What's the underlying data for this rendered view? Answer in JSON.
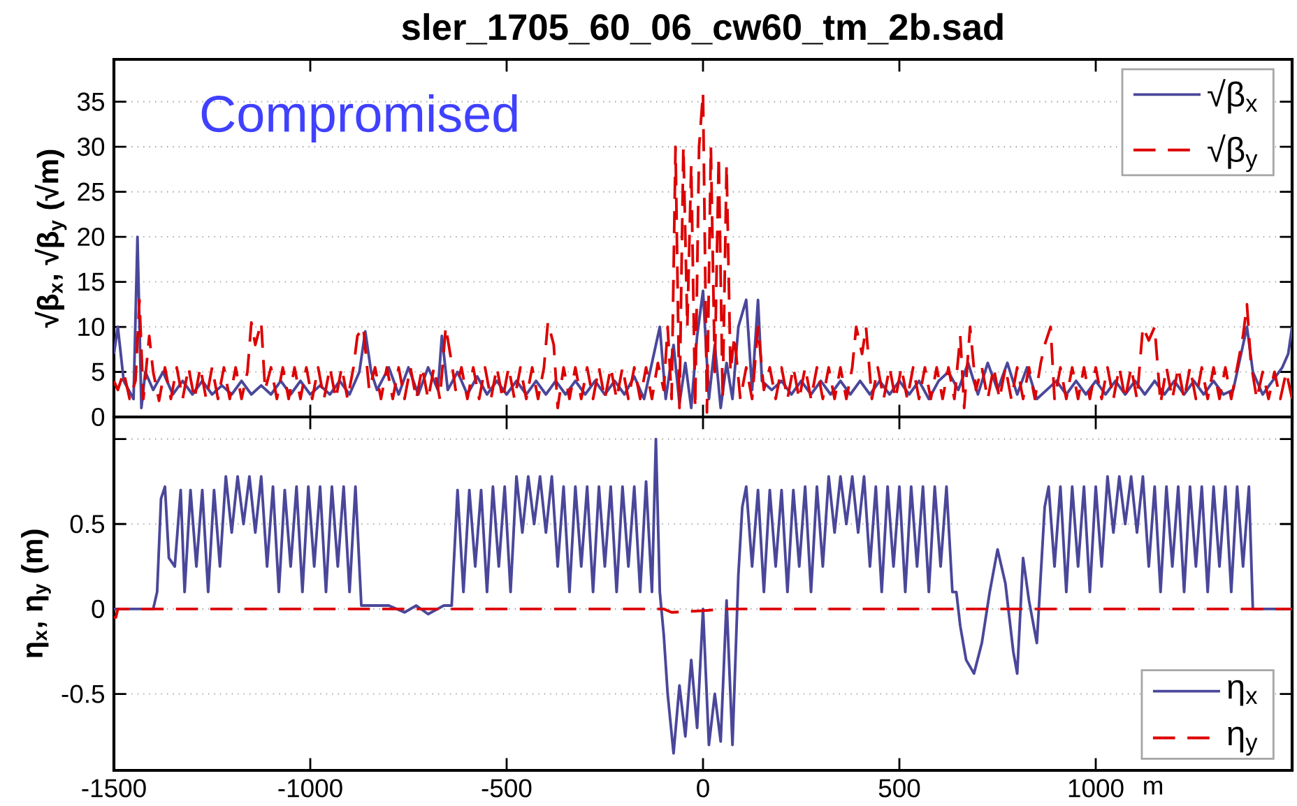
{
  "chart_data": [
    {
      "type": "line",
      "title": "sler_1705_60_06_cw60_tm_2b.sad",
      "ylabel": "√β$_{x}$, √β$_{y}$ (√m)",
      "annotations": [
        "Compromised"
      ],
      "xlim": [
        -1500,
        1500
      ],
      "xticks": [
        -1500,
        -1000,
        -500,
        0,
        500,
        1000
      ],
      "ylim": [
        0,
        39.7
      ],
      "yticks": [
        0,
        5,
        10,
        15,
        20,
        25,
        30,
        35
      ],
      "grid": "y",
      "legend": "top right",
      "tick_labels": "y",
      "series": [
        {
          "name": "√β$_{x}$",
          "color": "#4a479a",
          "line_style": "solid",
          "x": [
            -1500,
            -1490,
            -1475,
            -1450,
            -1440,
            -1430,
            -1420,
            -1400,
            -1375,
            -1350,
            -1325,
            -1300,
            -1275,
            -1250,
            -1225,
            -1200,
            -1175,
            -1150,
            -1125,
            -1100,
            -1075,
            -1050,
            -1025,
            -1000,
            -975,
            -950,
            -925,
            -900,
            -875,
            -860,
            -845,
            -830,
            -800,
            -775,
            -750,
            -725,
            -700,
            -675,
            -665,
            -650,
            -625,
            -600,
            -575,
            -550,
            -525,
            -500,
            -475,
            -450,
            -425,
            -400,
            -375,
            -350,
            -325,
            -300,
            -275,
            -250,
            -225,
            -200,
            -175,
            -150,
            -125,
            -110,
            -95,
            -75,
            -60,
            -45,
            -30,
            -15,
            0,
            15,
            30,
            45,
            60,
            75,
            90,
            110,
            125,
            140,
            150,
            175,
            200,
            225,
            250,
            275,
            300,
            325,
            350,
            375,
            400,
            425,
            450,
            475,
            500,
            525,
            550,
            575,
            600,
            625,
            650,
            675,
            700,
            725,
            750,
            775,
            800,
            825,
            850,
            875,
            900,
            925,
            950,
            975,
            1000,
            1025,
            1050,
            1075,
            1100,
            1125,
            1150,
            1175,
            1200,
            1225,
            1250,
            1275,
            1300,
            1325,
            1350,
            1375,
            1385,
            1400,
            1425,
            1450,
            1475,
            1490,
            1500
          ],
          "values": [
            7,
            10,
            4,
            2,
            20,
            1,
            5,
            3,
            5,
            2.5,
            4,
            2.5,
            4,
            2.5,
            3.5,
            2.5,
            4,
            2.5,
            3.5,
            2.5,
            4,
            2.5,
            4,
            2.5,
            3.5,
            2.5,
            4,
            2.5,
            5,
            9.5,
            5,
            3,
            5.5,
            2.5,
            5.5,
            2.5,
            5.5,
            3,
            9,
            3,
            5,
            2.5,
            4.5,
            2.5,
            4,
            2.5,
            4,
            2.5,
            4,
            2.5,
            4,
            2.5,
            4,
            2.5,
            4,
            2.5,
            4,
            2.5,
            4.5,
            2,
            7,
            10,
            2,
            8,
            1.5,
            6,
            1,
            9,
            14,
            2,
            8,
            1,
            6,
            2,
            10,
            13,
            3,
            13,
            4,
            3,
            4,
            2.5,
            4,
            2.5,
            4,
            2.5,
            4,
            2.5,
            4,
            2.5,
            4,
            2.5,
            4,
            2.5,
            4,
            2,
            4,
            5,
            3,
            6,
            2.5,
            6,
            3,
            6,
            2.5,
            5.5,
            2,
            3,
            4,
            2.5,
            4,
            2.5,
            4,
            2.5,
            4,
            2.5,
            4,
            2.5,
            4,
            2.5,
            4,
            2.5,
            4,
            2.5,
            4,
            2.5,
            3,
            8,
            10,
            5,
            2.5,
            4,
            5.5,
            7,
            10
          ]
        },
        {
          "name": "√β$_{y}$",
          "color": "#dd0000",
          "line_style": "dashed",
          "x": [
            -1500,
            -1490,
            -1475,
            -1460,
            -1445,
            -1435,
            -1425,
            -1410,
            -1400,
            -1385,
            -1370,
            -1355,
            -1340,
            -1325,
            -1310,
            -1295,
            -1280,
            -1265,
            -1250,
            -1235,
            -1220,
            -1205,
            -1190,
            -1175,
            -1160,
            -1150,
            -1140,
            -1125,
            -1115,
            -1100,
            -1085,
            -1070,
            -1055,
            -1040,
            -1025,
            -1010,
            -995,
            -980,
            -965,
            -950,
            -935,
            -920,
            -905,
            -890,
            -880,
            -865,
            -850,
            -835,
            -820,
            -805,
            -790,
            -775,
            -760,
            -745,
            -730,
            -715,
            -700,
            -685,
            -670,
            -655,
            -640,
            -630,
            -615,
            -600,
            -585,
            -570,
            -555,
            -540,
            -525,
            -510,
            -495,
            -480,
            -465,
            -450,
            -435,
            -420,
            -405,
            -395,
            -380,
            -370,
            -355,
            -340,
            -325,
            -310,
            -295,
            -280,
            -265,
            -250,
            -235,
            -220,
            -205,
            -190,
            -175,
            -160,
            -145,
            -130,
            -115,
            -100,
            -90,
            -80,
            -70,
            -60,
            -50,
            -40,
            -30,
            -20,
            -10,
            0,
            10,
            20,
            30,
            40,
            50,
            60,
            70,
            80,
            95,
            110,
            125,
            140,
            155,
            170,
            185,
            200,
            215,
            230,
            245,
            260,
            275,
            290,
            305,
            320,
            335,
            350,
            365,
            380,
            390,
            405,
            415,
            430,
            445,
            460,
            475,
            490,
            505,
            520,
            535,
            550,
            565,
            580,
            595,
            610,
            625,
            640,
            655,
            665,
            680,
            695,
            710,
            725,
            740,
            755,
            770,
            785,
            800,
            815,
            830,
            845,
            860,
            870,
            885,
            895,
            910,
            925,
            940,
            955,
            970,
            985,
            1000,
            1015,
            1030,
            1045,
            1060,
            1075,
            1090,
            1105,
            1120,
            1135,
            1150,
            1165,
            1180,
            1195,
            1210,
            1225,
            1240,
            1255,
            1270,
            1285,
            1300,
            1315,
            1330,
            1345,
            1360,
            1375,
            1385,
            1395,
            1410,
            1425,
            1440,
            1455,
            1470,
            1485,
            1500
          ],
          "values": [
            4,
            3,
            5,
            2,
            4,
            13,
            2,
            9,
            5,
            1.8,
            5.5,
            2,
            5.5,
            2,
            5.5,
            2,
            5.5,
            2,
            5.5,
            2,
            5.5,
            2,
            5.5,
            2,
            5,
            10.5,
            8,
            10.5,
            3,
            5.5,
            2,
            5.5,
            2,
            5.5,
            2,
            5.5,
            2,
            5.5,
            2,
            5.5,
            2,
            5.5,
            2,
            5.5,
            9,
            10,
            3,
            5.5,
            2,
            5.5,
            2,
            5.5,
            2,
            5.5,
            2,
            5.5,
            2,
            5.5,
            2,
            10,
            6,
            3,
            5.5,
            2,
            5.5,
            2,
            5.5,
            2,
            5.5,
            2,
            5.5,
            2,
            5.5,
            2,
            5.5,
            2,
            5.5,
            10.5,
            8,
            1,
            5.5,
            2,
            5.5,
            2,
            5.5,
            2,
            5.5,
            2,
            5.5,
            2,
            5.5,
            2,
            5.5,
            2,
            5.5,
            2,
            6,
            3,
            10,
            2,
            30,
            1,
            30,
            10,
            28,
            1,
            30,
            36,
            0.5,
            30,
            5,
            29,
            2,
            28,
            5,
            9,
            2,
            5.5,
            2,
            10,
            3,
            5.5,
            2,
            5.5,
            2,
            5.5,
            2,
            5.5,
            2,
            5.5,
            2,
            5.5,
            2,
            5.5,
            2,
            5.5,
            10,
            7,
            10,
            2,
            5.5,
            2,
            5.5,
            2,
            5.5,
            2,
            5.5,
            2,
            5.5,
            2,
            5.5,
            2,
            5.5,
            2,
            9,
            1,
            10,
            3,
            5.5,
            2,
            5.5,
            2,
            5.5,
            2,
            5.5,
            2,
            5.5,
            2,
            6,
            8,
            10,
            2,
            5.5,
            2,
            5.5,
            2,
            5.5,
            2,
            5.5,
            2,
            5.5,
            2,
            5.5,
            2,
            5.5,
            2,
            10,
            8.5,
            10,
            1.5,
            5.5,
            2,
            5.5,
            2,
            5.5,
            2,
            5.5,
            2,
            5.5,
            2,
            5.5,
            2,
            5.5,
            9,
            12.5,
            6,
            2,
            5,
            2,
            5,
            2,
            5,
            2
          ]
        }
      ]
    },
    {
      "type": "line",
      "xlabel": "m",
      "ylabel": "η$_{x}$, η$_{y}$ (m)",
      "xlim": [
        -1500,
        1500
      ],
      "xticks": [
        -1500,
        -1000,
        -500,
        0,
        500,
        1000
      ],
      "ylim": [
        -0.95,
        1.13
      ],
      "yticks": [
        -0.5,
        0,
        0.5,
        {
          "value": 1,
          "label": null
        }
      ],
      "grid": "y",
      "legend": "bottom right",
      "series": [
        {
          "name": "η$_{x}$",
          "color": "#4a479a",
          "line_style": "solid",
          "x": [
            -1500,
            -1400,
            -1390,
            -1380,
            -1370,
            -1360,
            -1345,
            -1330,
            -1320,
            -1305,
            -1290,
            -1275,
            -1260,
            -1245,
            -1230,
            -1215,
            -1200,
            -1185,
            -1170,
            -1155,
            -1140,
            -1125,
            -1110,
            -1095,
            -1080,
            -1065,
            -1050,
            -1035,
            -1020,
            -1005,
            -990,
            -975,
            -960,
            -945,
            -930,
            -915,
            -900,
            -885,
            -870,
            -800,
            -760,
            -730,
            -700,
            -660,
            -640,
            -625,
            -610,
            -595,
            -580,
            -565,
            -550,
            -535,
            -520,
            -505,
            -490,
            -475,
            -460,
            -445,
            -430,
            -415,
            -400,
            -385,
            -370,
            -355,
            -340,
            -325,
            -310,
            -295,
            -280,
            -265,
            -250,
            -235,
            -220,
            -205,
            -190,
            -175,
            -160,
            -145,
            -130,
            -120,
            -110,
            -100,
            -90,
            -75,
            -60,
            -45,
            -30,
            -15,
            0,
            15,
            30,
            45,
            60,
            75,
            90,
            100,
            110,
            125,
            140,
            155,
            170,
            185,
            200,
            215,
            230,
            245,
            260,
            275,
            290,
            305,
            320,
            335,
            350,
            365,
            380,
            395,
            410,
            425,
            440,
            455,
            470,
            485,
            500,
            515,
            530,
            545,
            560,
            575,
            590,
            605,
            620,
            635,
            645,
            655,
            670,
            690,
            710,
            730,
            750,
            770,
            790,
            800,
            815,
            830,
            850,
            870,
            880,
            895,
            910,
            925,
            940,
            955,
            970,
            985,
            1000,
            1015,
            1030,
            1045,
            1060,
            1075,
            1090,
            1105,
            1120,
            1135,
            1150,
            1165,
            1180,
            1195,
            1210,
            1225,
            1240,
            1255,
            1270,
            1285,
            1300,
            1315,
            1330,
            1345,
            1360,
            1375,
            1390,
            1400,
            1500
          ],
          "values": [
            0,
            0,
            0.1,
            0.65,
            0.72,
            0.3,
            0.25,
            0.7,
            0.1,
            0.7,
            0.25,
            0.7,
            0.1,
            0.7,
            0.25,
            0.78,
            0.45,
            0.78,
            0.5,
            0.78,
            0.45,
            0.78,
            0.25,
            0.72,
            0.1,
            0.7,
            0.25,
            0.72,
            0.1,
            0.72,
            0.25,
            0.72,
            0.1,
            0.72,
            0.25,
            0.72,
            0.1,
            0.72,
            0.02,
            0.02,
            -0.02,
            0.02,
            -0.03,
            0.02,
            0.02,
            0.7,
            0.1,
            0.7,
            0.25,
            0.7,
            0.1,
            0.72,
            0.25,
            0.72,
            0.1,
            0.78,
            0.45,
            0.78,
            0.5,
            0.78,
            0.45,
            0.78,
            0.25,
            0.72,
            0.1,
            0.72,
            0.25,
            0.72,
            0.1,
            0.72,
            0.25,
            0.72,
            0.1,
            0.72,
            0.25,
            0.72,
            0.1,
            0.75,
            0.1,
            1.0,
            0.1,
            -0.15,
            -0.5,
            -0.85,
            -0.45,
            -0.75,
            -0.3,
            -0.7,
            0,
            -0.8,
            -0.5,
            -0.78,
            0.05,
            -0.8,
            0.2,
            0.6,
            0.72,
            0.25,
            0.7,
            0.1,
            0.7,
            0.25,
            0.7,
            0.1,
            0.7,
            0.25,
            0.72,
            0.1,
            0.72,
            0.25,
            0.78,
            0.45,
            0.78,
            0.5,
            0.78,
            0.45,
            0.78,
            0.25,
            0.72,
            0.1,
            0.72,
            0.25,
            0.72,
            0.1,
            0.72,
            0.25,
            0.72,
            0.1,
            0.72,
            0.25,
            0.72,
            0.1,
            0.1,
            -0.1,
            -0.3,
            -0.38,
            -0.2,
            0.1,
            0.35,
            0.15,
            -0.25,
            -0.38,
            0.3,
            0.05,
            -0.2,
            0.6,
            0.72,
            0.25,
            0.72,
            0.1,
            0.72,
            0.25,
            0.72,
            0.1,
            0.72,
            0.25,
            0.78,
            0.45,
            0.78,
            0.5,
            0.78,
            0.45,
            0.78,
            0.25,
            0.72,
            0.1,
            0.72,
            0.25,
            0.72,
            0.1,
            0.72,
            0.25,
            0.72,
            0.1,
            0.72,
            0.25,
            0.72,
            0.1,
            0.72,
            0.25,
            0.72,
            0,
            0
          ]
        },
        {
          "name": "η$_{y}$",
          "color": "#dd0000",
          "line_style": "dashed",
          "x": [
            -1500,
            -1495,
            -1490,
            -100,
            -80,
            0,
            60,
            1500
          ],
          "values": [
            -0.05,
            -0.05,
            0,
            0,
            -0.02,
            -0.01,
            0,
            0
          ]
        }
      ]
    }
  ]
}
